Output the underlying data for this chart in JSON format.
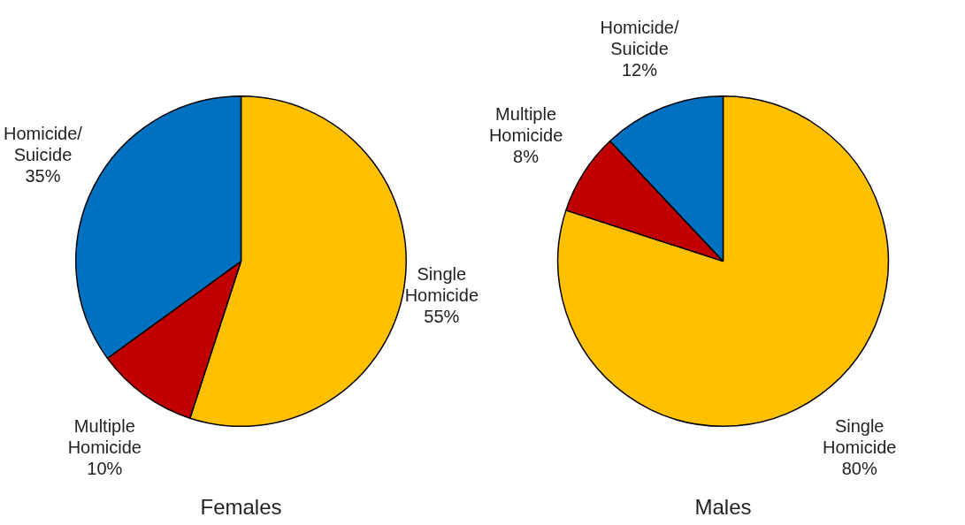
{
  "chart_data": [
    {
      "type": "pie",
      "title": "Females",
      "categories": [
        "Single Homicide",
        "Multiple Homicide",
        "Homicide/ Suicide"
      ],
      "values": [
        55,
        10,
        35
      ],
      "colors": [
        "#ffc000",
        "#c00000",
        "#0070c0"
      ],
      "value_labels": [
        "55%",
        "10%",
        "35%"
      ]
    },
    {
      "type": "pie",
      "title": "Males",
      "categories": [
        "Single Homicide",
        "Multiple Homicide",
        "Homicide/ Suicide"
      ],
      "values": [
        80,
        8,
        12
      ],
      "colors": [
        "#ffc000",
        "#c00000",
        "#0070c0"
      ],
      "value_labels": [
        "80%",
        "8%",
        "12%"
      ]
    }
  ]
}
